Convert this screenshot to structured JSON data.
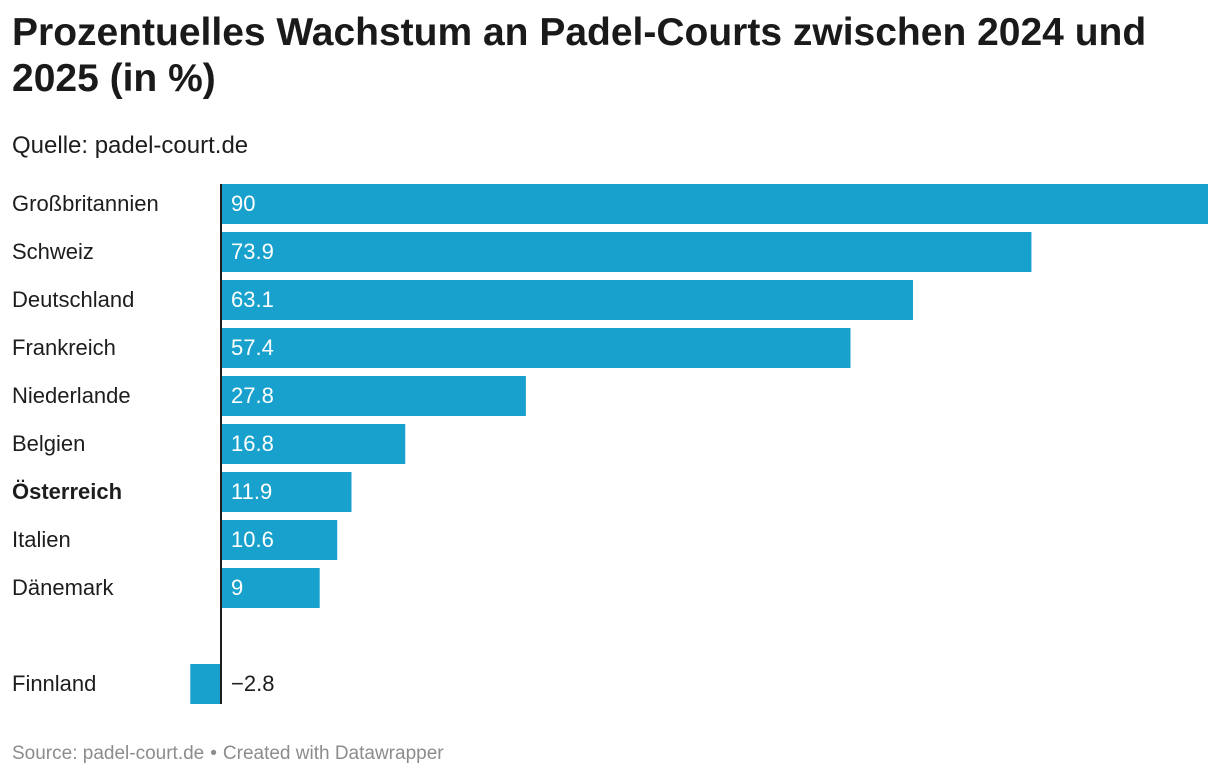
{
  "header": {
    "title": "Prozentuelles Wachstum an Padel-Courts zwischen 2024 und 2025 (in %)",
    "subtitle": "Quelle: padel-court.de"
  },
  "footer": {
    "source": "Source: padel-court.de",
    "separator": "•",
    "credit": "Created with Datawrapper"
  },
  "colors": {
    "bar": "#18a1cd",
    "axis": "#1d1d1d",
    "label_inside": "#ffffff",
    "label_outside": "#1d1d1d"
  },
  "chart_data": {
    "type": "bar",
    "orientation": "horizontal",
    "categories": [
      "Großbritannien",
      "Schweiz",
      "Deutschland",
      "Frankreich",
      "Niederlande",
      "Belgien",
      "Österreich",
      "Italien",
      "Dänemark",
      "Finnland"
    ],
    "values": [
      90,
      73.9,
      63.1,
      57.4,
      27.8,
      16.8,
      11.9,
      10.6,
      9,
      -2.8
    ],
    "value_labels": [
      "90",
      "73.9",
      "63.1",
      "57.4",
      "27.8",
      "16.8",
      "11.9",
      "10.6",
      "9",
      "−2.8"
    ],
    "highlighted": [
      "Österreich"
    ],
    "xlim": [
      -2.8,
      90
    ],
    "grid": false,
    "legend": "none"
  }
}
